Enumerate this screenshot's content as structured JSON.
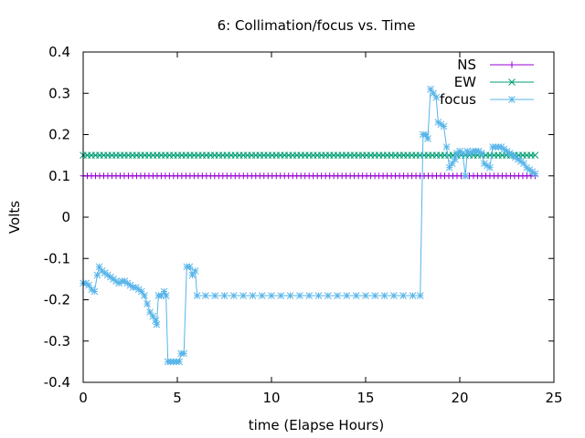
{
  "chart_data": {
    "type": "line",
    "title": "6: Collimation/focus vs. Time",
    "xlabel": "time (Elapse Hours)",
    "ylabel": "Volts",
    "xlim": [
      0,
      25
    ],
    "ylim": [
      -0.4,
      0.4
    ],
    "x_ticks": [
      0,
      5,
      10,
      15,
      20,
      25
    ],
    "y_ticks": [
      -0.4,
      -0.3,
      -0.2,
      -0.1,
      0,
      0.1,
      0.2,
      0.3,
      0.4
    ],
    "x_tick_labels": [
      "0",
      "5",
      "10",
      "15",
      "20",
      "25"
    ],
    "y_tick_labels": [
      "-0.4",
      "-0.3",
      "-0.2",
      "-0.1",
      "0",
      "0.1",
      "0.2",
      "0.3",
      "0.4"
    ],
    "grid": false,
    "legend_position": "top-right",
    "series": [
      {
        "name": "NS",
        "color": "#9400d3",
        "marker": "plus",
        "x_range": [
          0,
          24
        ],
        "value": 0.1
      },
      {
        "name": "EW",
        "color": "#009e73",
        "marker": "cross",
        "x_range": [
          0,
          24
        ],
        "value": 0.15
      },
      {
        "name": "focus",
        "color": "#56b4e9",
        "marker": "star",
        "points": [
          [
            0,
            -0.16
          ],
          [
            0.15,
            -0.16
          ],
          [
            0.3,
            -0.165
          ],
          [
            0.45,
            -0.175
          ],
          [
            0.6,
            -0.18
          ],
          [
            0.75,
            -0.14
          ],
          [
            0.85,
            -0.12
          ],
          [
            1.0,
            -0.13
          ],
          [
            1.15,
            -0.135
          ],
          [
            1.3,
            -0.14
          ],
          [
            1.45,
            -0.145
          ],
          [
            1.6,
            -0.15
          ],
          [
            1.75,
            -0.155
          ],
          [
            1.9,
            -0.16
          ],
          [
            2.05,
            -0.155
          ],
          [
            2.2,
            -0.155
          ],
          [
            2.35,
            -0.16
          ],
          [
            2.5,
            -0.165
          ],
          [
            2.65,
            -0.17
          ],
          [
            2.8,
            -0.17
          ],
          [
            2.95,
            -0.175
          ],
          [
            3.1,
            -0.18
          ],
          [
            3.25,
            -0.19
          ],
          [
            3.4,
            -0.21
          ],
          [
            3.55,
            -0.23
          ],
          [
            3.7,
            -0.24
          ],
          [
            3.85,
            -0.25
          ],
          [
            3.9,
            -0.26
          ],
          [
            4.0,
            -0.19
          ],
          [
            4.15,
            -0.19
          ],
          [
            4.3,
            -0.18
          ],
          [
            4.4,
            -0.19
          ],
          [
            4.5,
            -0.35
          ],
          [
            4.65,
            -0.35
          ],
          [
            4.8,
            -0.35
          ],
          [
            4.95,
            -0.35
          ],
          [
            5.1,
            -0.35
          ],
          [
            5.2,
            -0.33
          ],
          [
            5.35,
            -0.33
          ],
          [
            5.5,
            -0.12
          ],
          [
            5.65,
            -0.12
          ],
          [
            5.8,
            -0.14
          ],
          [
            5.95,
            -0.13
          ],
          [
            6.05,
            -0.19
          ],
          [
            6.5,
            -0.19
          ],
          [
            7,
            -0.19
          ],
          [
            7.5,
            -0.19
          ],
          [
            8,
            -0.19
          ],
          [
            8.5,
            -0.19
          ],
          [
            9,
            -0.19
          ],
          [
            9.5,
            -0.19
          ],
          [
            10,
            -0.19
          ],
          [
            10.5,
            -0.19
          ],
          [
            11,
            -0.19
          ],
          [
            11.5,
            -0.19
          ],
          [
            12,
            -0.19
          ],
          [
            12.5,
            -0.19
          ],
          [
            13,
            -0.19
          ],
          [
            13.5,
            -0.19
          ],
          [
            14,
            -0.19
          ],
          [
            14.5,
            -0.19
          ],
          [
            15,
            -0.19
          ],
          [
            15.5,
            -0.19
          ],
          [
            16,
            -0.19
          ],
          [
            16.5,
            -0.19
          ],
          [
            17,
            -0.19
          ],
          [
            17.5,
            -0.19
          ],
          [
            17.9,
            -0.19
          ],
          [
            18.05,
            0.2
          ],
          [
            18.2,
            0.2
          ],
          [
            18.3,
            0.19
          ],
          [
            18.45,
            0.31
          ],
          [
            18.6,
            0.3
          ],
          [
            18.75,
            0.29
          ],
          [
            18.85,
            0.23
          ],
          [
            19.0,
            0.225
          ],
          [
            19.15,
            0.22
          ],
          [
            19.3,
            0.17
          ],
          [
            19.45,
            0.12
          ],
          [
            19.6,
            0.13
          ],
          [
            19.75,
            0.14
          ],
          [
            19.85,
            0.155
          ],
          [
            20.0,
            0.16
          ],
          [
            20.15,
            0.155
          ],
          [
            20.3,
            0.1
          ],
          [
            20.4,
            0.16
          ],
          [
            20.55,
            0.155
          ],
          [
            20.7,
            0.16
          ],
          [
            20.85,
            0.16
          ],
          [
            21.0,
            0.16
          ],
          [
            21.15,
            0.155
          ],
          [
            21.3,
            0.13
          ],
          [
            21.45,
            0.125
          ],
          [
            21.6,
            0.12
          ],
          [
            21.75,
            0.17
          ],
          [
            21.9,
            0.17
          ],
          [
            22.05,
            0.17
          ],
          [
            22.2,
            0.17
          ],
          [
            22.35,
            0.165
          ],
          [
            22.5,
            0.16
          ],
          [
            22.65,
            0.155
          ],
          [
            22.8,
            0.15
          ],
          [
            22.95,
            0.145
          ],
          [
            23.1,
            0.14
          ],
          [
            23.25,
            0.135
          ],
          [
            23.4,
            0.13
          ],
          [
            23.55,
            0.12
          ],
          [
            23.7,
            0.115
          ],
          [
            23.85,
            0.11
          ],
          [
            24.0,
            0.105
          ]
        ]
      }
    ]
  }
}
